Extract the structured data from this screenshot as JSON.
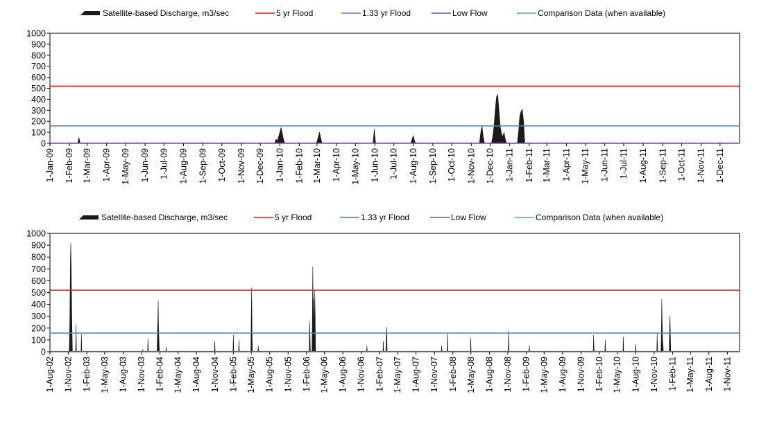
{
  "colors": {
    "discharge": "#1a1a1a",
    "flood5": "#e8161b",
    "flood133": "#4f81bd",
    "lowflow": "#7b4fa0",
    "comparison": "#4bacc6",
    "plot_border": "#000000"
  },
  "legend": {
    "discharge": "Satellite-based Discharge, m3/sec",
    "flood5": "5 yr Flood",
    "flood133": "1.33 yr Flood",
    "lowflow": "Low Flow",
    "comparison": "Comparison Data (when available)"
  },
  "chart_data": [
    {
      "type": "area",
      "legend_position": "top",
      "grid": false,
      "ylim": [
        0,
        1000
      ],
      "yticks": [
        "0",
        "100",
        "200",
        "300",
        "400",
        "500",
        "600",
        "700",
        "800",
        "900",
        "1000"
      ],
      "xlim": [
        "2009-01-01",
        "2012-01-01"
      ],
      "xtick_labels": [
        "1-Jan-09",
        "1-Feb-09",
        "1-Mar-09",
        "1-Apr-09",
        "1-May-09",
        "1-Jun-09",
        "1-Jul-09",
        "1-Aug-09",
        "1-Sep-09",
        "1-Oct-09",
        "1-Nov-09",
        "1-Dec-09",
        "1-Jan-10",
        "1-Feb-10",
        "1-Mar-10",
        "1-Apr-10",
        "1-May-10",
        "1-Jun-10",
        "1-Jul-10",
        "1-Aug-10",
        "1-Sep-10",
        "1-Oct-10",
        "1-Nov-10",
        "1-Dec-10",
        "1-Jan-11",
        "1-Feb-11",
        "1-Mar-11",
        "1-Apr-11",
        "1-May-11",
        "1-Jun-11",
        "1-Jul-11",
        "1-Aug-11",
        "1-Sep-11",
        "1-Oct-11",
        "1-Nov-11",
        "1-Dec-11"
      ],
      "thresholds": {
        "flood5": 520,
        "flood133": 158,
        "lowflow": 3
      },
      "series": [
        {
          "name": "Satellite-based Discharge, m3/sec",
          "points": [
            [
              "2009-01-01",
              0
            ],
            [
              "2009-02-14",
              0
            ],
            [
              "2009-02-16",
              55
            ],
            [
              "2009-02-18",
              0
            ],
            [
              "2009-05-18",
              0
            ],
            [
              "2009-05-20",
              8
            ],
            [
              "2009-05-22",
              0
            ],
            [
              "2009-12-24",
              0
            ],
            [
              "2009-12-26",
              40
            ],
            [
              "2009-12-28",
              20
            ],
            [
              "2009-12-30",
              60
            ],
            [
              "2010-01-01",
              100
            ],
            [
              "2010-01-03",
              145
            ],
            [
              "2010-01-05",
              90
            ],
            [
              "2010-01-07",
              30
            ],
            [
              "2010-01-09",
              0
            ],
            [
              "2010-02-27",
              0
            ],
            [
              "2010-03-01",
              15
            ],
            [
              "2010-03-03",
              60
            ],
            [
              "2010-03-05",
              100
            ],
            [
              "2010-03-07",
              50
            ],
            [
              "2010-03-09",
              0
            ],
            [
              "2010-05-29",
              0
            ],
            [
              "2010-05-31",
              130
            ],
            [
              "2010-06-02",
              0
            ],
            [
              "2010-07-28",
              0
            ],
            [
              "2010-07-30",
              40
            ],
            [
              "2010-08-01",
              70
            ],
            [
              "2010-08-03",
              20
            ],
            [
              "2010-08-05",
              0
            ],
            [
              "2010-11-14",
              0
            ],
            [
              "2010-11-16",
              100
            ],
            [
              "2010-11-18",
              160
            ],
            [
              "2010-11-20",
              60
            ],
            [
              "2010-11-22",
              0
            ],
            [
              "2010-12-03",
              0
            ],
            [
              "2010-12-05",
              60
            ],
            [
              "2010-12-07",
              150
            ],
            [
              "2010-12-09",
              300
            ],
            [
              "2010-12-11",
              420
            ],
            [
              "2010-12-13",
              445
            ],
            [
              "2010-12-15",
              300
            ],
            [
              "2010-12-17",
              150
            ],
            [
              "2010-12-19",
              90
            ],
            [
              "2010-12-21",
              60
            ],
            [
              "2010-12-23",
              100
            ],
            [
              "2010-12-25",
              40
            ],
            [
              "2010-12-27",
              0
            ],
            [
              "2011-01-13",
              0
            ],
            [
              "2011-01-15",
              100
            ],
            [
              "2011-01-17",
              250
            ],
            [
              "2011-01-19",
              290
            ],
            [
              "2011-01-21",
              310
            ],
            [
              "2011-01-23",
              200
            ],
            [
              "2011-01-25",
              0
            ],
            [
              "2012-01-01",
              0
            ]
          ]
        },
        {
          "name": "Comparison Data (when available)",
          "points": []
        }
      ]
    },
    {
      "type": "area",
      "legend_position": "top",
      "grid": false,
      "ylim": [
        0,
        1000
      ],
      "yticks": [
        "0",
        "100",
        "200",
        "300",
        "400",
        "500",
        "600",
        "700",
        "800",
        "900",
        "1000"
      ],
      "xlim": [
        "2002-08-01",
        "2012-01-01"
      ],
      "xtick_labels": [
        "1-Aug-02",
        "1-Nov-02",
        "1-Feb-03",
        "1-May-03",
        "1-Aug-03",
        "1-Nov-03",
        "1-Feb-04",
        "1-May-04",
        "1-Aug-04",
        "1-Nov-04",
        "1-Feb-05",
        "1-May-05",
        "1-Aug-05",
        "1-Nov-05",
        "1-Feb-06",
        "1-May-06",
        "1-Aug-06",
        "1-Nov-06",
        "1-Feb-07",
        "1-May-07",
        "1-Aug-07",
        "1-Nov-07",
        "1-Feb-08",
        "1-May-08",
        "1-Aug-08",
        "1-Nov-08",
        "1-Feb-09",
        "1-May-09",
        "1-Aug-09",
        "1-Nov-09",
        "1-Feb-10",
        "1-May-10",
        "1-Aug-10",
        "1-Nov-10",
        "1-Feb-11",
        "1-May-11",
        "1-Aug-11",
        "1-Nov-11"
      ],
      "thresholds": {
        "flood5": 520,
        "flood133": 158,
        "lowflow": 3
      },
      "series": [
        {
          "name": "Satellite-based Discharge, m3/sec",
          "points": [
            [
              "2002-08-01",
              0
            ],
            [
              "2002-11-05",
              0
            ],
            [
              "2002-11-08",
              250
            ],
            [
              "2002-11-11",
              780
            ],
            [
              "2002-11-13",
              920
            ],
            [
              "2002-11-15",
              700
            ],
            [
              "2002-11-18",
              300
            ],
            [
              "2002-11-21",
              0
            ],
            [
              "2002-12-07",
              0
            ],
            [
              "2002-12-09",
              230
            ],
            [
              "2002-12-11",
              0
            ],
            [
              "2003-01-03",
              0
            ],
            [
              "2003-01-05",
              150
            ],
            [
              "2003-01-07",
              0
            ],
            [
              "2003-11-05",
              0
            ],
            [
              "2003-11-07",
              20
            ],
            [
              "2003-11-09",
              0
            ],
            [
              "2003-12-01",
              0
            ],
            [
              "2003-12-03",
              110
            ],
            [
              "2003-12-05",
              0
            ],
            [
              "2004-01-17",
              0
            ],
            [
              "2004-01-19",
              140
            ],
            [
              "2004-01-21",
              260
            ],
            [
              "2004-01-23",
              430
            ],
            [
              "2004-01-25",
              200
            ],
            [
              "2004-01-27",
              100
            ],
            [
              "2004-01-29",
              0
            ],
            [
              "2004-03-01",
              0
            ],
            [
              "2004-03-03",
              40
            ],
            [
              "2004-03-05",
              0
            ],
            [
              "2004-10-29",
              0
            ],
            [
              "2004-10-31",
              90
            ],
            [
              "2004-11-02",
              0
            ],
            [
              "2005-01-30",
              0
            ],
            [
              "2005-02-01",
              140
            ],
            [
              "2005-02-03",
              0
            ],
            [
              "2005-02-27",
              0
            ],
            [
              "2005-03-01",
              100
            ],
            [
              "2005-03-03",
              0
            ],
            [
              "2005-04-29",
              0
            ],
            [
              "2005-05-01",
              300
            ],
            [
              "2005-05-03",
              540
            ],
            [
              "2005-05-05",
              200
            ],
            [
              "2005-05-07",
              0
            ],
            [
              "2005-06-03",
              0
            ],
            [
              "2005-06-05",
              50
            ],
            [
              "2005-06-07",
              0
            ],
            [
              "2006-02-14",
              0
            ],
            [
              "2006-02-16",
              260
            ],
            [
              "2006-02-18",
              150
            ],
            [
              "2006-02-20",
              0
            ],
            [
              "2006-02-28",
              0
            ],
            [
              "2006-03-02",
              300
            ],
            [
              "2006-03-04",
              720
            ],
            [
              "2006-03-06",
              400
            ],
            [
              "2006-03-08",
              450
            ],
            [
              "2006-03-10",
              300
            ],
            [
              "2006-03-12",
              200
            ],
            [
              "2006-03-14",
              520
            ],
            [
              "2006-03-16",
              300
            ],
            [
              "2006-03-18",
              0
            ],
            [
              "2006-11-27",
              0
            ],
            [
              "2006-11-29",
              50
            ],
            [
              "2006-12-01",
              0
            ],
            [
              "2007-02-17",
              0
            ],
            [
              "2007-02-19",
              90
            ],
            [
              "2007-02-21",
              0
            ],
            [
              "2007-03-04",
              0
            ],
            [
              "2007-03-06",
              150
            ],
            [
              "2007-03-08",
              210
            ],
            [
              "2007-03-10",
              0
            ],
            [
              "2007-12-05",
              0
            ],
            [
              "2007-12-07",
              50
            ],
            [
              "2007-12-09",
              0
            ],
            [
              "2008-01-03",
              0
            ],
            [
              "2008-01-05",
              160
            ],
            [
              "2008-01-07",
              0
            ],
            [
              "2008-04-28",
              0
            ],
            [
              "2008-04-30",
              120
            ],
            [
              "2008-05-02",
              0
            ],
            [
              "2008-11-03",
              0
            ],
            [
              "2008-11-05",
              180
            ],
            [
              "2008-11-07",
              0
            ],
            [
              "2009-02-14",
              0
            ],
            [
              "2009-02-16",
              55
            ],
            [
              "2009-02-18",
              0
            ],
            [
              "2010-01-01",
              0
            ],
            [
              "2010-01-03",
              140
            ],
            [
              "2010-01-05",
              0
            ],
            [
              "2010-02-28",
              0
            ],
            [
              "2010-03-02",
              100
            ],
            [
              "2010-03-04",
              0
            ],
            [
              "2010-05-29",
              0
            ],
            [
              "2010-05-31",
              125
            ],
            [
              "2010-06-02",
              0
            ],
            [
              "2010-07-30",
              0
            ],
            [
              "2010-08-01",
              65
            ],
            [
              "2010-08-03",
              0
            ],
            [
              "2010-11-14",
              0
            ],
            [
              "2010-11-16",
              160
            ],
            [
              "2010-11-18",
              0
            ],
            [
              "2010-12-05",
              0
            ],
            [
              "2010-12-07",
              180
            ],
            [
              "2010-12-09",
              445
            ],
            [
              "2010-12-11",
              250
            ],
            [
              "2010-12-13",
              100
            ],
            [
              "2010-12-15",
              60
            ],
            [
              "2010-12-17",
              0
            ],
            [
              "2011-01-15",
              0
            ],
            [
              "2011-01-17",
              200
            ],
            [
              "2011-01-19",
              305
            ],
            [
              "2011-01-21",
              150
            ],
            [
              "2011-01-23",
              0
            ],
            [
              "2012-01-01",
              0
            ]
          ]
        },
        {
          "name": "Comparison Data (when available)",
          "points": []
        }
      ]
    }
  ]
}
